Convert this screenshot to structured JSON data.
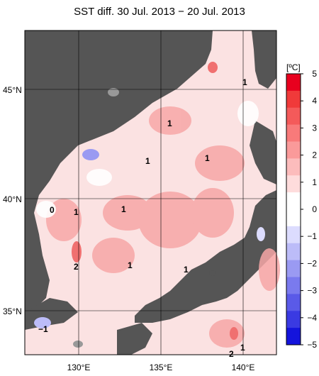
{
  "title": "SST diff. 30 Jul. 2013 − 20 Jul. 2013",
  "unit_label": "[ºC]",
  "lat_labels": [
    "45°N",
    "40°N",
    "35°N"
  ],
  "lon_labels": [
    "130°E",
    "135°E",
    "140°E"
  ],
  "colorbar": {
    "ticks": [
      "5",
      "4",
      "3",
      "2",
      "1",
      "0",
      "−1",
      "−2",
      "−3",
      "−4",
      "−5"
    ],
    "colors": [
      "#e8001e",
      "#f03a3a",
      "#f45a5a",
      "#f87a7a",
      "#fa9a9a",
      "#fcbcbc",
      "#fedcdc",
      "#ffffff",
      "#ffffff",
      "#dcdcfe",
      "#bcbcf8",
      "#9a9af2",
      "#7a7aee",
      "#5a5ae8",
      "#3a3ae2",
      "#1414dc"
    ]
  },
  "contour_labels": [
    {
      "text": "1"
    },
    {
      "text": "1"
    },
    {
      "text": "1"
    },
    {
      "text": "1"
    },
    {
      "text": "0"
    },
    {
      "text": "1"
    },
    {
      "text": "1"
    },
    {
      "text": "2"
    },
    {
      "text": "1"
    },
    {
      "text": "1"
    },
    {
      "text": "−1"
    },
    {
      "text": "2"
    },
    {
      "text": "1"
    }
  ]
}
